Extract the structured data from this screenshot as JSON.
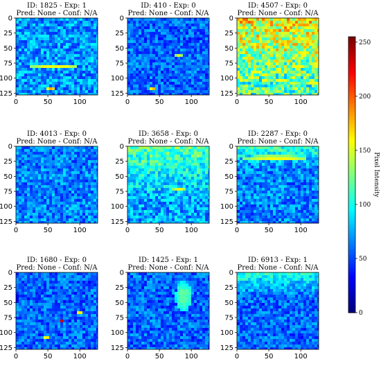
{
  "chart_data": {
    "type": "heatmap",
    "colormap": "jet",
    "grid": false,
    "colorbar": {
      "label": "Pixel Intensity",
      "range": [
        0,
        255
      ],
      "ticks": [
        "0",
        "50",
        "100",
        "150",
        "200",
        "250"
      ],
      "tick_values": [
        0,
        50,
        100,
        150,
        200,
        250
      ],
      "placement": "right"
    },
    "axis": {
      "x_range": [
        0,
        128
      ],
      "y_range": [
        128,
        0
      ],
      "x_tick_values": [
        0,
        50,
        100
      ],
      "x_ticks": [
        "0",
        "50",
        "100"
      ],
      "y_tick_values": [
        0,
        25,
        50,
        75,
        100,
        125
      ],
      "y_ticks": [
        "0",
        "25",
        "50",
        "75",
        "100",
        "125"
      ]
    },
    "panels": [
      {
        "title": "ID: 1825 - Exp: 1",
        "subtitle": "Pred: None - Conf: N/A",
        "background": 0.3,
        "bright_band_rows": [],
        "hot_spots": [
          {
            "x": 60,
            "y": 80,
            "w": 80,
            "h": 4,
            "v": 0.62
          },
          {
            "x": 55,
            "y": 118,
            "w": 14,
            "h": 4,
            "v": 0.7
          }
        ]
      },
      {
        "title": "ID: 410 - Exp: 0",
        "subtitle": "Pred: None - Conf: N/A",
        "background": 0.25,
        "bright_band_rows": [],
        "hot_spots": [
          {
            "x": 40,
            "y": 117,
            "w": 10,
            "h": 4,
            "v": 0.7
          },
          {
            "x": 80,
            "y": 62,
            "w": 10,
            "h": 4,
            "v": 0.6
          },
          {
            "x": 57,
            "y": 50,
            "w": 3,
            "h": 60,
            "v": 0.42
          }
        ]
      },
      {
        "title": "ID: 4507 - Exp: 0",
        "subtitle": "Pred: None - Conf: N/A",
        "background": 0.5,
        "bright_band_rows": [
          [
            0,
            110
          ]
        ],
        "hot_spots": [
          {
            "x": 65,
            "y": 60,
            "w": 12,
            "h": 5,
            "v": 0.72
          }
        ]
      },
      {
        "title": "ID: 4013 - Exp: 0",
        "subtitle": "Pred: None - Conf: N/A",
        "background": 0.28,
        "bright_band_rows": [],
        "hot_spots": [
          {
            "x": 22,
            "y": 40,
            "w": 3,
            "h": 50,
            "v": 0.45
          },
          {
            "x": 82,
            "y": 40,
            "w": 3,
            "h": 60,
            "v": 0.45
          }
        ]
      },
      {
        "title": "ID: 3658 - Exp: 0",
        "subtitle": "Pred: None - Conf: N/A",
        "background": 0.32,
        "bright_band_rows": [
          [
            0,
            88
          ]
        ],
        "hot_spots": [
          {
            "x": 80,
            "y": 72,
            "w": 20,
            "h": 4,
            "v": 0.6
          }
        ]
      },
      {
        "title": "ID: 2287 - Exp: 0",
        "subtitle": "Pred: None - Conf: N/A",
        "background": 0.28,
        "bright_band_rows": [
          [
            0,
            35
          ]
        ],
        "hot_spots": [
          {
            "x": 60,
            "y": 20,
            "w": 100,
            "h": 10,
            "v": 0.6
          }
        ]
      },
      {
        "title": "ID: 1680 - Exp: 0",
        "subtitle": "Pred: None - Conf: N/A",
        "background": 0.25,
        "bright_band_rows": [],
        "hot_spots": [
          {
            "x": 72,
            "y": 80,
            "w": 6,
            "h": 4,
            "v": 0.95
          },
          {
            "x": 48,
            "y": 110,
            "w": 10,
            "h": 5,
            "v": 0.72
          },
          {
            "x": 100,
            "y": 66,
            "w": 10,
            "h": 4,
            "v": 0.68
          }
        ]
      },
      {
        "title": "ID: 1425 - Exp: 1",
        "subtitle": "Pred: None - Conf: N/A",
        "background": 0.25,
        "bright_band_rows": [],
        "hot_spots": [
          {
            "x": 88,
            "y": 40,
            "w": 26,
            "h": 50,
            "v": 0.45
          },
          {
            "x": 40,
            "y": 18,
            "w": 60,
            "h": 3,
            "v": 0.5
          }
        ]
      },
      {
        "title": "ID: 6913 - Exp: 1",
        "subtitle": "Pred: None - Conf: N/A",
        "background": 0.25,
        "bright_band_rows": [
          [
            0,
            40
          ]
        ],
        "hot_spots": [
          {
            "x": 70,
            "y": 55,
            "w": 40,
            "h": 3,
            "v": 0.8
          }
        ]
      }
    ]
  }
}
